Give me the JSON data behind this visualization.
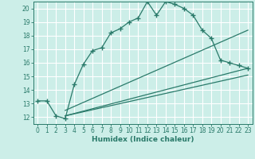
{
  "xlabel": "Humidex (Indice chaleur)",
  "bg_color": "#cceee8",
  "grid_color": "#ffffff",
  "line_color": "#2a7a6a",
  "xlim": [
    -0.5,
    23.5
  ],
  "ylim": [
    11.5,
    20.5
  ],
  "yticks": [
    12,
    13,
    14,
    15,
    16,
    17,
    18,
    19,
    20
  ],
  "xticks": [
    0,
    1,
    2,
    3,
    4,
    5,
    6,
    7,
    8,
    9,
    10,
    11,
    12,
    13,
    14,
    15,
    16,
    17,
    18,
    19,
    20,
    21,
    22,
    23
  ],
  "curve1_x": [
    0,
    1,
    2,
    3,
    4,
    5,
    6,
    7,
    8,
    9,
    10,
    11,
    12,
    13,
    14,
    15,
    16,
    17,
    18,
    19,
    20,
    21,
    22,
    23
  ],
  "curve1_y": [
    13.2,
    13.2,
    12.1,
    11.9,
    14.4,
    15.9,
    16.9,
    17.1,
    18.2,
    18.5,
    19.0,
    19.3,
    20.5,
    19.5,
    20.5,
    20.3,
    20.0,
    19.5,
    18.4,
    17.8,
    16.2,
    16.0,
    15.8,
    15.6
  ],
  "curve2_x": [
    3,
    23
  ],
  "curve2_y": [
    12.5,
    18.4
  ],
  "curve3_x": [
    3,
    23
  ],
  "curve3_y": [
    12.1,
    15.6
  ],
  "curve4_x": [
    3,
    23
  ],
  "curve4_y": [
    12.1,
    15.1
  ]
}
